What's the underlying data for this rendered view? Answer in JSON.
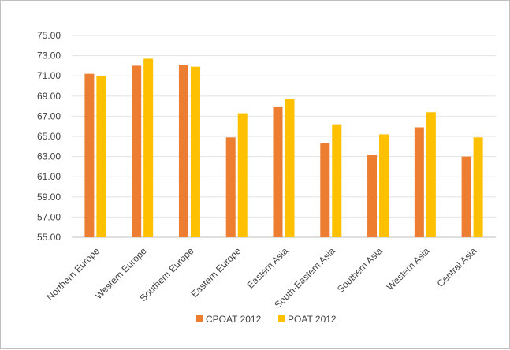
{
  "chart_data": {
    "type": "bar",
    "categories": [
      "Northern Europe",
      "Western Europe",
      "Southern Europe",
      "Eastern Europe",
      "Eastern Asia",
      "South-Eastern Asia",
      "Southern Asia",
      "Western Asia",
      "Central Asia"
    ],
    "series": [
      {
        "name": "CPOAT 2012",
        "values": [
          71.2,
          72.0,
          72.1,
          64.9,
          67.9,
          64.3,
          63.2,
          65.9,
          63.0
        ],
        "color": "#ED7D31"
      },
      {
        "name": "POAT 2012",
        "values": [
          71.0,
          72.7,
          71.9,
          67.3,
          68.7,
          66.2,
          65.2,
          67.4,
          64.9
        ],
        "color": "#FFC000"
      }
    ],
    "yticks": [
      "55.00",
      "57.00",
      "59.00",
      "61.00",
      "63.00",
      "65.00",
      "67.00",
      "69.00",
      "71.00",
      "73.00",
      "75.00"
    ],
    "ylim": [
      55,
      75
    ],
    "grid": true,
    "legend_position": "bottom",
    "title": "",
    "xlabel": "",
    "ylabel": ""
  }
}
